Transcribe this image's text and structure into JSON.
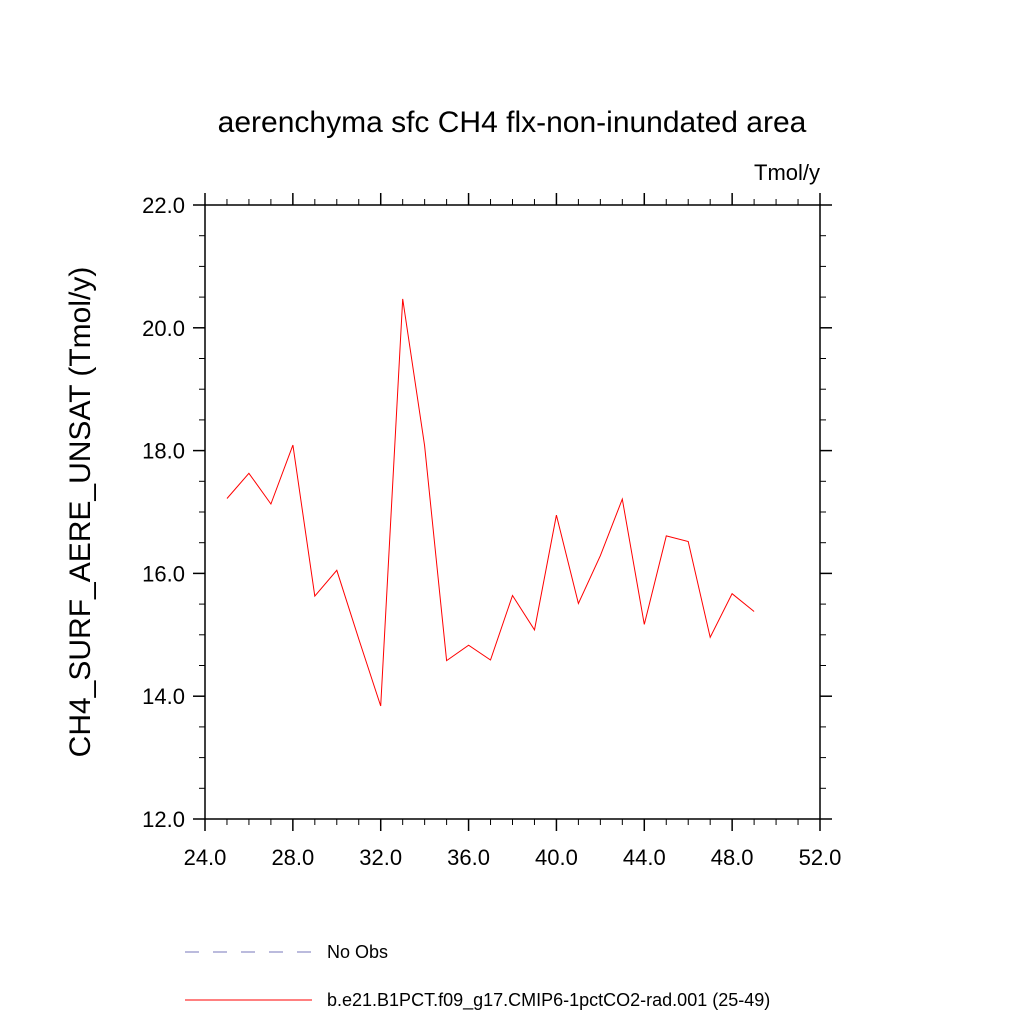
{
  "chart_data": {
    "type": "line",
    "title": "aerenchyma sfc CH4 flx-non-inundated area",
    "units": "Tmol/y",
    "xlabel": "",
    "ylabel": "CH4_SURF_AERE_UNSAT  (Tmol/y)",
    "xlim": [
      24.0,
      52.0
    ],
    "ylim": [
      12.0,
      22.0
    ],
    "x_ticks": [
      24.0,
      28.0,
      32.0,
      36.0,
      40.0,
      44.0,
      48.0,
      52.0
    ],
    "x_tick_labels": [
      "24.0",
      "28.0",
      "32.0",
      "36.0",
      "40.0",
      "44.0",
      "48.0",
      "52.0"
    ],
    "y_ticks": [
      12.0,
      14.0,
      16.0,
      18.0,
      20.0,
      22.0
    ],
    "y_tick_labels": [
      "12.0",
      "14.0",
      "16.0",
      "18.0",
      "20.0",
      "22.0"
    ],
    "grid": false,
    "legend_position": "bottom",
    "series": [
      {
        "name": "No Obs",
        "color": "#7777bb",
        "style": "dashed",
        "x": [],
        "y": []
      },
      {
        "name": "b.e21.B1PCT.f09_g17.CMIP6-1pctCO2-rad.001 (25-49)",
        "color": "#ff0000",
        "style": "solid",
        "x": [
          25,
          26,
          27,
          28,
          29,
          30,
          31,
          32,
          33,
          34,
          35,
          36,
          37,
          38,
          39,
          40,
          41,
          42,
          43,
          44,
          45,
          46,
          47,
          48,
          49
        ],
        "y": [
          17.22,
          17.63,
          17.13,
          18.09,
          15.63,
          16.05,
          14.93,
          13.84,
          20.47,
          18.08,
          14.58,
          14.83,
          14.59,
          15.64,
          15.08,
          16.95,
          15.51,
          16.29,
          17.21,
          15.17,
          16.61,
          16.52,
          14.96,
          15.67,
          15.38
        ]
      }
    ]
  }
}
